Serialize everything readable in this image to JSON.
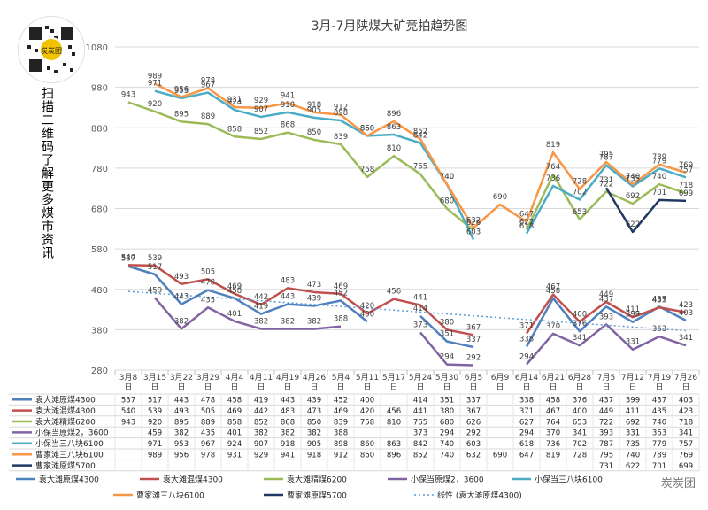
{
  "page": {
    "side_text": "扫描二维码了解更多煤市资讯",
    "qr_label": "炭炭团",
    "watermark": "炭炭团"
  },
  "colors": {
    "s1": "#4f81bd",
    "s2": "#c0504d",
    "s3": "#9bbb59",
    "s4": "#8064a2",
    "s5": "#4bacc6",
    "s6": "#f79646",
    "s7": "#1f3864",
    "trend": "#5b9bd5"
  },
  "chart_data": {
    "type": "line",
    "title": "3月-7月陕煤大矿竞拍趋势图",
    "categories": [
      "3月8日",
      "3月15日",
      "3月22日",
      "3月29日",
      "4月4日",
      "4月11日",
      "4月19日",
      "4月26日",
      "5月4日",
      "5月11日",
      "5月17日",
      "5月24日",
      "5月30日",
      "6月5日",
      "6月9日",
      "6月14日",
      "6月21日",
      "6月28日",
      "7月5日",
      "7月12日",
      "7月19日",
      "7月26日"
    ],
    "yticks": [
      280,
      380,
      480,
      580,
      680,
      780,
      880,
      980,
      1080
    ],
    "ylim": [
      280,
      1080
    ],
    "grid": true,
    "legend_position": "bottom",
    "series": [
      {
        "name": "袁大滩原煤4300",
        "color_key": "s1",
        "values": [
          537,
          517,
          443,
          478,
          458,
          419,
          443,
          439,
          452,
          400,
          null,
          414,
          351,
          337,
          null,
          338,
          458,
          376,
          437,
          399,
          437,
          403
        ]
      },
      {
        "name": "袁大滩混煤4300",
        "color_key": "s2",
        "values": [
          540,
          539,
          493,
          505,
          469,
          442,
          483,
          473,
          469,
          420,
          456,
          441,
          380,
          367,
          null,
          371,
          467,
          400,
          449,
          411,
          435,
          423
        ]
      },
      {
        "name": "袁大滩精煤6200",
        "color_key": "s3",
        "values": [
          943,
          920,
          895,
          889,
          858,
          852,
          868,
          850,
          839,
          758,
          810,
          765,
          680,
          626,
          null,
          627,
          764,
          653,
          722,
          692,
          740,
          718
        ]
      },
      {
        "name": "小保当原煤2，3600",
        "color_key": "s4",
        "values": [
          null,
          459,
          382,
          435,
          401,
          382,
          382,
          382,
          388,
          null,
          null,
          373,
          294,
          292,
          null,
          294,
          370,
          341,
          393,
          331,
          363,
          341
        ]
      },
      {
        "name": "小保当三八块6100",
        "color_key": "s5",
        "values": [
          null,
          971,
          953,
          967,
          924,
          907,
          918,
          905,
          898,
          860,
          863,
          842,
          740,
          603,
          null,
          618,
          736,
          702,
          787,
          735,
          779,
          757
        ]
      },
      {
        "name": "曹家滩三八块6100",
        "color_key": "s6",
        "values": [
          null,
          989,
          956,
          978,
          931,
          929,
          941,
          918,
          912,
          860,
          896,
          852,
          740,
          632,
          690,
          647,
          819,
          728,
          795,
          740,
          789,
          769
        ]
      },
      {
        "name": "曹家滩原煤5700",
        "color_key": "s7",
        "values": [
          null,
          null,
          null,
          null,
          null,
          null,
          null,
          null,
          null,
          null,
          null,
          null,
          null,
          null,
          null,
          null,
          null,
          null,
          731,
          622,
          701,
          699
        ]
      }
    ],
    "trendline": {
      "name": "线性 (袁大滩原煤4300)",
      "color_key": "trend"
    },
    "table_rows": [
      {
        "name": "袁大滩原煤4300",
        "color_key": "s1",
        "cells": [
          "537",
          "517",
          "443",
          "478",
          "458",
          "419",
          "443",
          "439",
          "452",
          "400",
          "",
          "414",
          "351",
          "337",
          "",
          "338",
          "458",
          "376",
          "437",
          "399",
          "437",
          "403"
        ]
      },
      {
        "name": "袁大滩混煤4300",
        "color_key": "s2",
        "cells": [
          "540",
          "539",
          "493",
          "505",
          "469",
          "442",
          "483",
          "473",
          "469",
          "420",
          "456",
          "441",
          "380",
          "367",
          "",
          "371",
          "467",
          "400",
          "449",
          "411",
          "435",
          "423"
        ]
      },
      {
        "name": "袁大滩精煤6200",
        "color_key": "s3",
        "cells": [
          "943",
          "920",
          "895",
          "889",
          "858",
          "852",
          "868",
          "850",
          "839",
          "758",
          "810",
          "765",
          "680",
          "626",
          "",
          "627",
          "764",
          "653",
          "722",
          "692",
          "740",
          "718"
        ]
      },
      {
        "name": "小保当原煤2，3600",
        "color_key": "s4",
        "cells": [
          "",
          "459",
          "382",
          "435",
          "401",
          "382",
          "382",
          "382",
          "388",
          "",
          "",
          "373",
          "294",
          "292",
          "",
          "294",
          "370",
          "341",
          "393",
          "331",
          "363",
          "341"
        ]
      },
      {
        "name": "小保当三八块6100",
        "color_key": "s5",
        "cells": [
          "",
          "971",
          "953",
          "967",
          "924",
          "907",
          "918",
          "905",
          "898",
          "860",
          "863",
          "842",
          "740",
          "603",
          "",
          "618",
          "736",
          "702",
          "787",
          "735",
          "779",
          "757"
        ]
      },
      {
        "name": "曹家滩三八块6100",
        "color_key": "s6",
        "cells": [
          "",
          "989",
          "956",
          "978",
          "931",
          "929",
          "941",
          "918",
          "912",
          "860",
          "896",
          "852",
          "740",
          "632",
          "690",
          "647",
          "819",
          "728",
          "795",
          "740",
          "789",
          "769"
        ]
      },
      {
        "name": "曹家滩原煤5700",
        "color_key": "s7",
        "cells": [
          "",
          "",
          "",
          "",
          "",
          "",
          "",
          "",
          "",
          "",
          "",
          "",
          "",
          "",
          "",
          "",
          "",
          "",
          "731",
          "622",
          "701",
          "699"
        ]
      }
    ]
  }
}
